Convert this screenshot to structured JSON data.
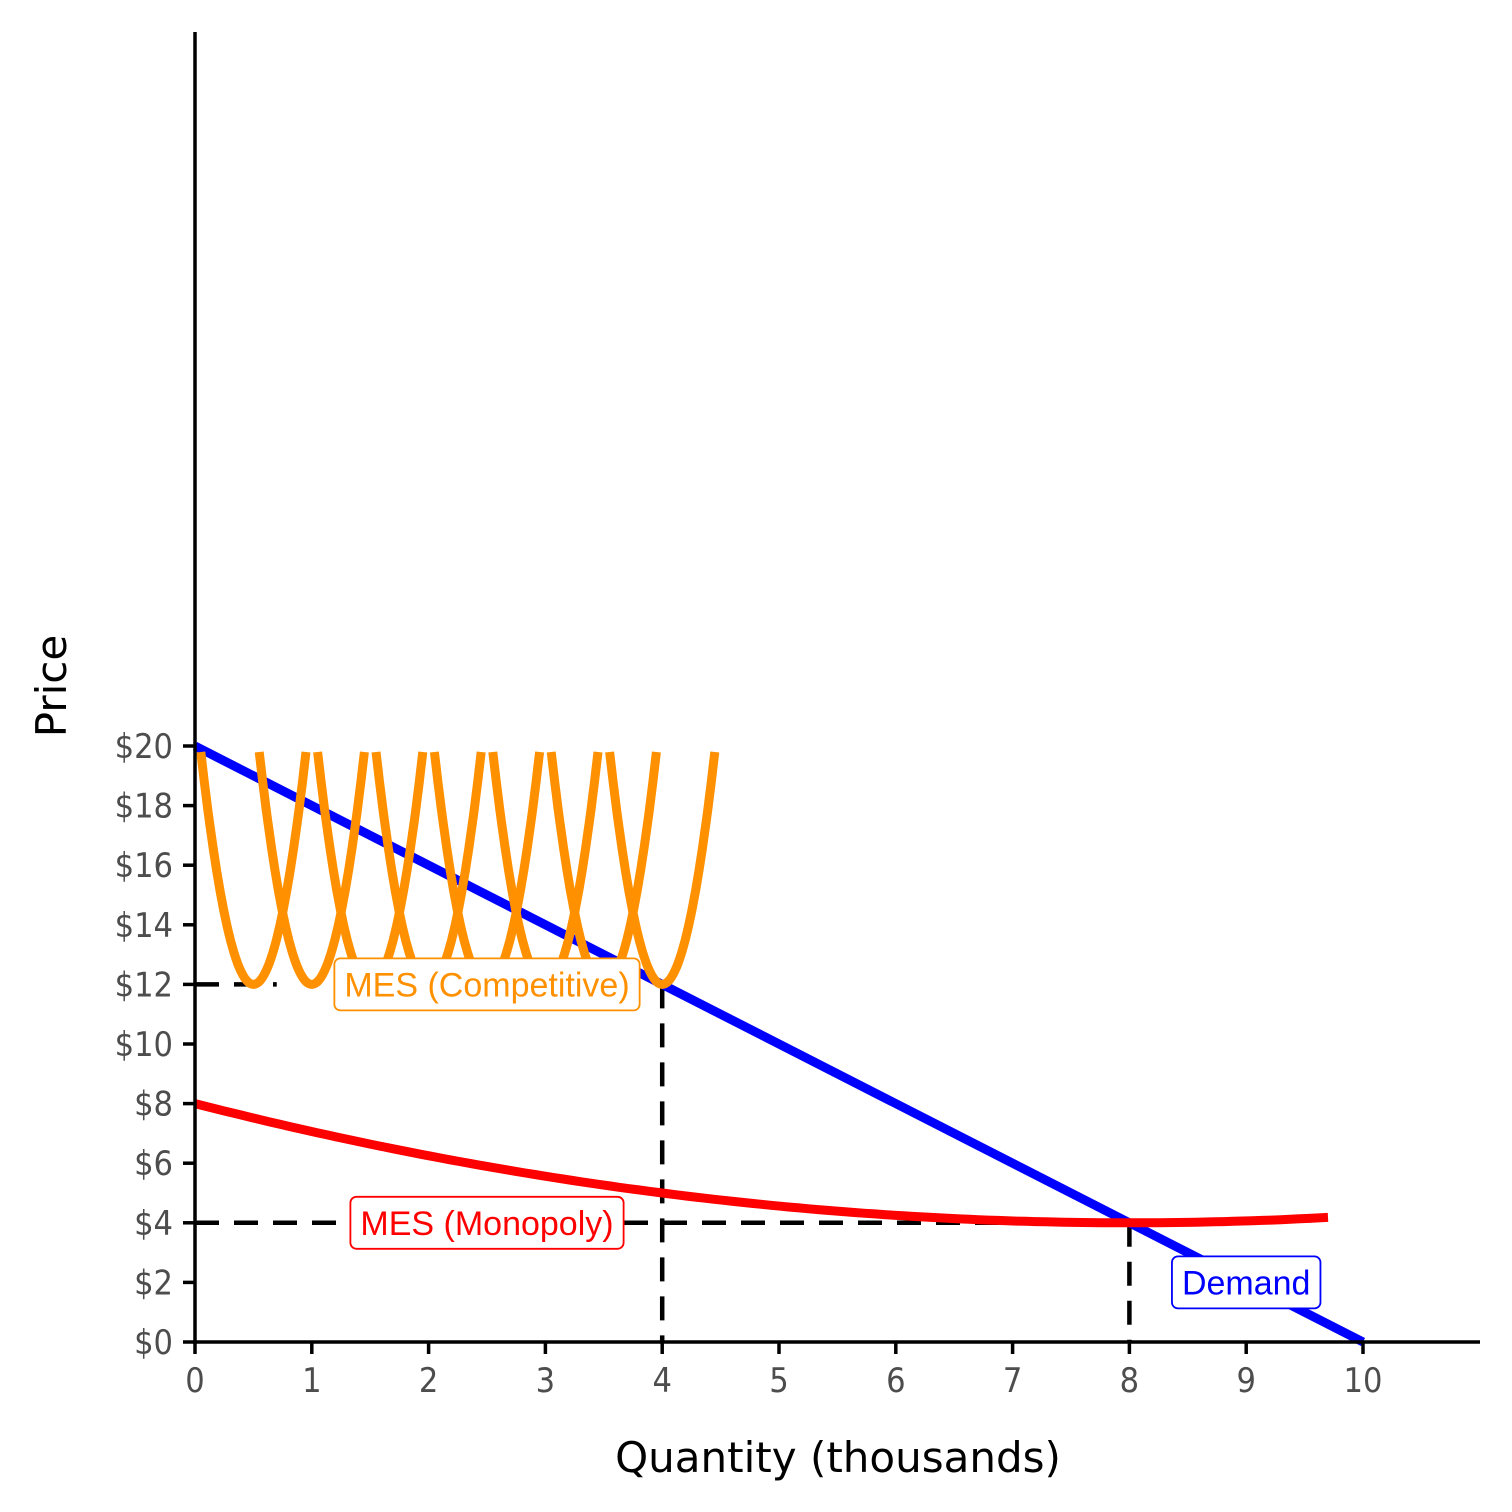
{
  "chart_data": {
    "type": "line",
    "xlabel": "Quantity (thousands)",
    "ylabel": "Price",
    "xlim": [
      0,
      11
    ],
    "ylim": [
      0,
      22
    ],
    "x_ticks": [
      "0",
      "1",
      "2",
      "3",
      "4",
      "5",
      "6",
      "7",
      "8",
      "9",
      "10"
    ],
    "y_ticks": [
      "$0",
      "$2",
      "$4",
      "$6",
      "$8",
      "$10",
      "$12",
      "$14",
      "$16",
      "$18",
      "$20"
    ],
    "grid": false,
    "legend": "none",
    "series": [
      {
        "kind": "demand",
        "color": "#0000FF",
        "x": [
          0,
          10
        ],
        "y": [
          20,
          0
        ]
      },
      {
        "kind": "monopoly-ac",
        "color": "#FF0000",
        "x": [
          0,
          1,
          2,
          3,
          4,
          5,
          6,
          7,
          8,
          9,
          9.7
        ],
        "y": [
          8.0,
          7.06,
          6.25,
          5.56,
          5.0,
          4.56,
          4.25,
          4.06,
          4.0,
          4.06,
          4.18
        ]
      },
      {
        "kind": "competitive-ac",
        "color": "#FF9000",
        "min_x": [
          0.5,
          1.0,
          1.5,
          2.0,
          2.5,
          3.0,
          3.5,
          4.0
        ],
        "min_y": 12,
        "top_y": 19.8
      }
    ],
    "annotations": [
      {
        "text": "MES (Competitive)",
        "color": "#FF9000",
        "x": 2.5,
        "y": 12
      },
      {
        "text": "MES (Monopoly)",
        "color": "#FF0000",
        "x": 2.5,
        "y": 4
      },
      {
        "text": "Demand",
        "color": "#0000FF",
        "x": 9.0,
        "y": 2
      }
    ],
    "reference_lines": [
      {
        "from": [
          0,
          12
        ],
        "to": [
          0.7,
          12
        ]
      },
      {
        "from": [
          4,
          12
        ],
        "to": [
          4,
          0
        ]
      },
      {
        "from": [
          0,
          4
        ],
        "to": [
          8,
          4
        ]
      },
      {
        "from": [
          8,
          4
        ],
        "to": [
          8,
          0
        ]
      }
    ]
  }
}
